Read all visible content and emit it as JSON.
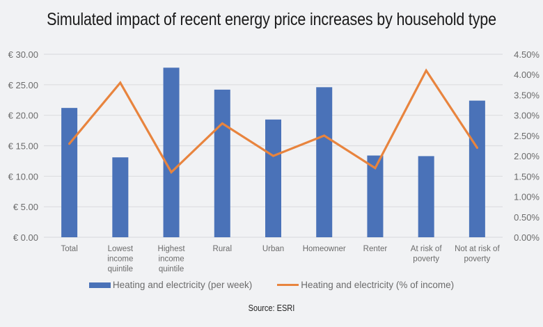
{
  "chart_data": {
    "type": "bar",
    "title": "Simulated impact of recent energy price increases by household type",
    "categories": [
      [
        "Total"
      ],
      [
        "Lowest",
        "income",
        "quintile"
      ],
      [
        "Highest",
        "income",
        "quintile"
      ],
      [
        "Rural"
      ],
      [
        "Urban"
      ],
      [
        "Homeowner"
      ],
      [
        "Renter"
      ],
      [
        "At risk of",
        "poverty"
      ],
      [
        "Not at risk of",
        "poverty"
      ]
    ],
    "series": [
      {
        "name": "Heating and electricity (per week)",
        "type": "bar",
        "axis": "left",
        "color": "#4a72b8",
        "values": [
          21.2,
          13.1,
          27.8,
          24.2,
          19.3,
          24.6,
          13.4,
          13.3,
          22.4
        ]
      },
      {
        "name": "Heating and electricity (% of income)",
        "type": "line",
        "axis": "right",
        "color": "#e8843e",
        "values": [
          2.3,
          3.8,
          1.6,
          2.8,
          2.0,
          2.5,
          1.7,
          4.1,
          2.2
        ]
      }
    ],
    "left_axis": {
      "ylim": [
        0,
        30
      ],
      "ticks": [
        0,
        5,
        10,
        15,
        20,
        25,
        30
      ],
      "tick_labels": [
        "€ 0.00",
        "€ 5.00",
        "€ 10.00",
        "€ 15.00",
        "€ 20.00",
        "€ 25.00",
        "€ 30.00"
      ]
    },
    "right_axis": {
      "ylim": [
        0,
        4.5
      ],
      "ticks": [
        0,
        0.5,
        1,
        1.5,
        2,
        2.5,
        3,
        3.5,
        4,
        4.5
      ],
      "tick_labels": [
        "0.00%",
        "0.50%",
        "1.00%",
        "1.50%",
        "2.00%",
        "2.50%",
        "3.00%",
        "3.50%",
        "4.00%",
        "4.50%"
      ]
    },
    "xlabel": "",
    "ylabel": "",
    "grid": true,
    "legend_position": "bottom"
  },
  "source": "Source: ESRI",
  "colors": {
    "background": "#f1f2f4",
    "grid": "#dcdde0",
    "bar": "#4a72b8",
    "line": "#e8843e"
  }
}
